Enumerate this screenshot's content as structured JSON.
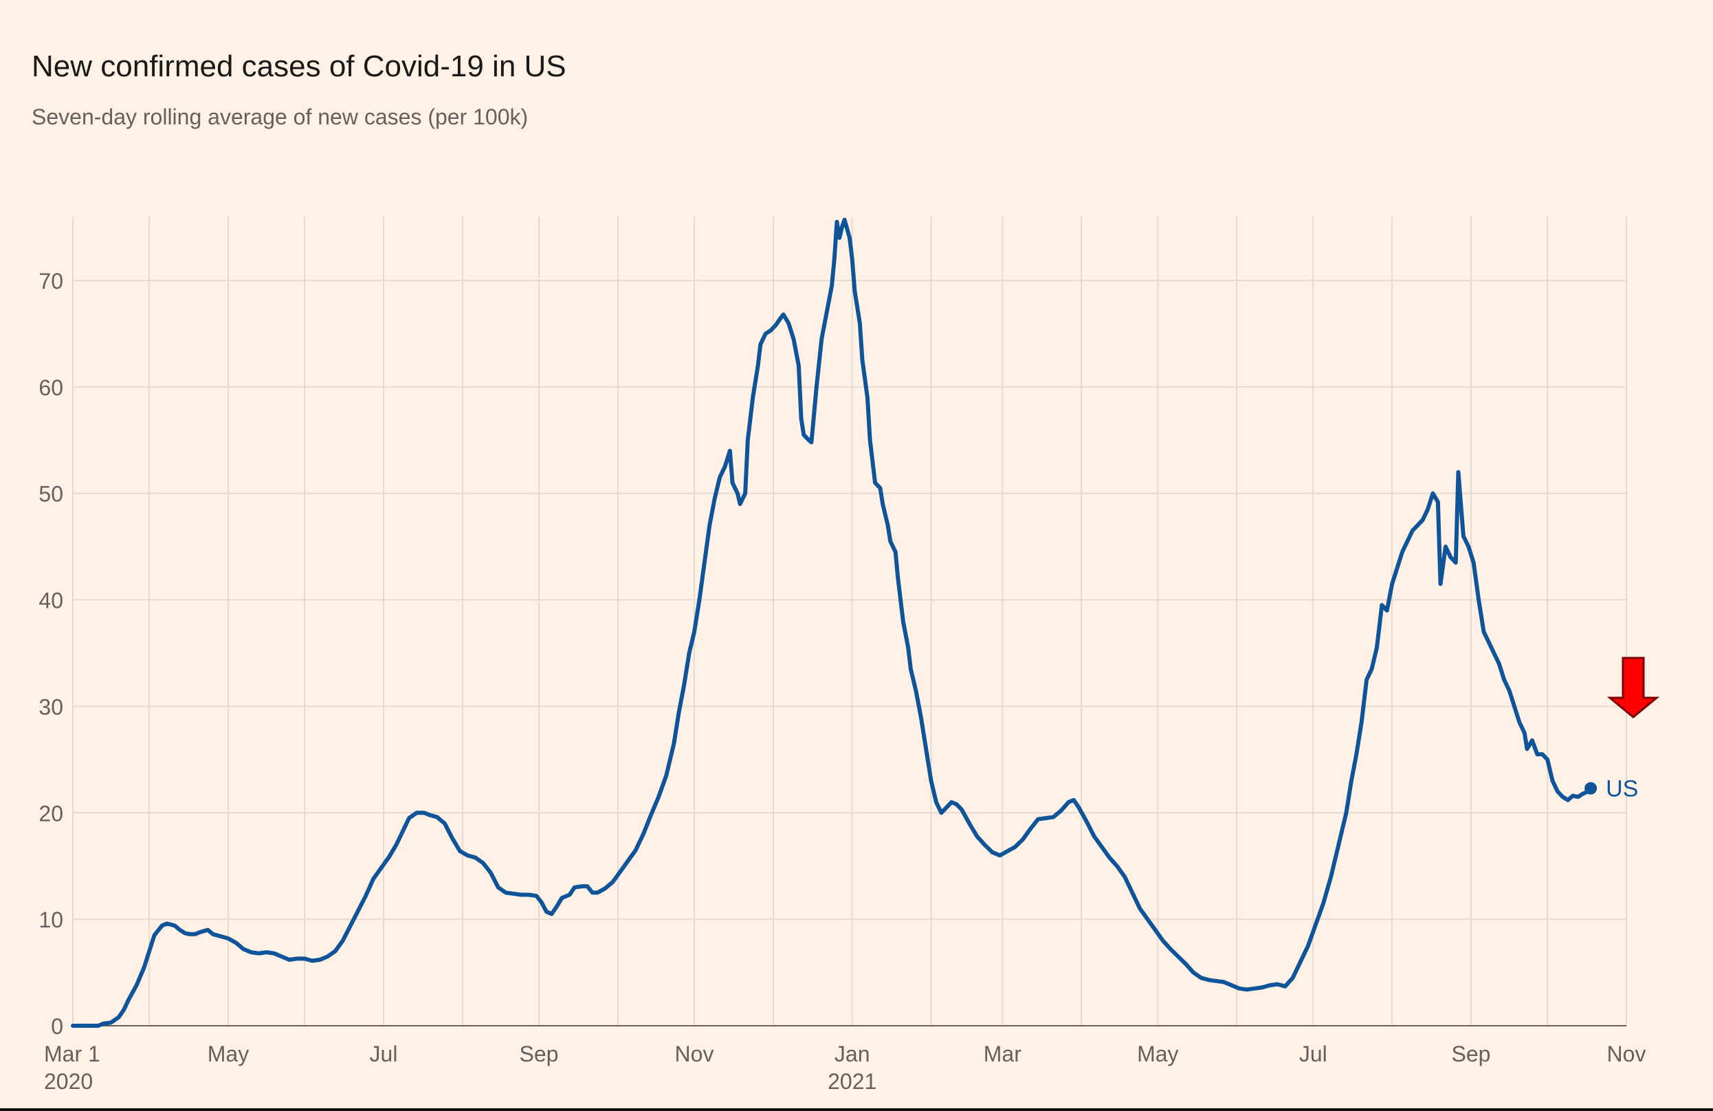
{
  "title": "New confirmed cases of Covid-19 in US",
  "subtitle": "Seven-day rolling average of new cases (per 100k)",
  "colors": {
    "background": "#fff1e5",
    "grid": "#e6d9ce",
    "axis": "#66605c",
    "series": "#0f5499",
    "arrow_fill": "#ff0000",
    "arrow_stroke": "#7a0000"
  },
  "annotation": {
    "type": "down-arrow",
    "icon": "down-arrow-icon",
    "target": "US"
  },
  "chart_data": {
    "type": "line",
    "title": "New confirmed cases of Covid-19 in US",
    "subtitle": "Seven-day rolling average of new cases (per 100k)",
    "xlabel": "",
    "ylabel": "",
    "xlim": [
      0,
      610
    ],
    "ylim": [
      0,
      76
    ],
    "grid": true,
    "legend": "end-label",
    "yticks": [
      0,
      10,
      20,
      30,
      40,
      50,
      60,
      70
    ],
    "xticks": [
      {
        "value": 0,
        "label": "Mar 1",
        "sublabel": "2020",
        "major": true
      },
      {
        "value": 30,
        "label": "",
        "sublabel": "",
        "major": false
      },
      {
        "value": 61,
        "label": "May",
        "sublabel": "",
        "major": true
      },
      {
        "value": 91,
        "label": "",
        "sublabel": "",
        "major": false
      },
      {
        "value": 122,
        "label": "Jul",
        "sublabel": "",
        "major": true
      },
      {
        "value": 153,
        "label": "",
        "sublabel": "",
        "major": false
      },
      {
        "value": 183,
        "label": "Sep",
        "sublabel": "",
        "major": true
      },
      {
        "value": 214,
        "label": "",
        "sublabel": "",
        "major": false
      },
      {
        "value": 244,
        "label": "Nov",
        "sublabel": "",
        "major": true
      },
      {
        "value": 275,
        "label": "",
        "sublabel": "",
        "major": false
      },
      {
        "value": 306,
        "label": "Jan",
        "sublabel": "2021",
        "major": true
      },
      {
        "value": 337,
        "label": "",
        "sublabel": "",
        "major": false
      },
      {
        "value": 365,
        "label": "Mar",
        "sublabel": "",
        "major": true
      },
      {
        "value": 396,
        "label": "",
        "sublabel": "",
        "major": false
      },
      {
        "value": 426,
        "label": "May",
        "sublabel": "",
        "major": true
      },
      {
        "value": 457,
        "label": "",
        "sublabel": "",
        "major": false
      },
      {
        "value": 487,
        "label": "Jul",
        "sublabel": "",
        "major": true
      },
      {
        "value": 518,
        "label": "",
        "sublabel": "",
        "major": false
      },
      {
        "value": 549,
        "label": "Sep",
        "sublabel": "",
        "major": true
      },
      {
        "value": 579,
        "label": "",
        "sublabel": "",
        "major": false
      },
      {
        "value": 610,
        "label": "Nov",
        "sublabel": "",
        "major": true
      }
    ],
    "series": [
      {
        "name": "US",
        "color": "#0f5499",
        "end_value": 22.3,
        "points": [
          [
            0,
            0
          ],
          [
            5,
            0
          ],
          [
            10,
            0
          ],
          [
            12,
            0.2
          ],
          [
            15,
            0.3
          ],
          [
            18,
            0.8
          ],
          [
            20,
            1.5
          ],
          [
            22,
            2.5
          ],
          [
            25,
            3.8
          ],
          [
            28,
            5.5
          ],
          [
            30,
            7
          ],
          [
            32,
            8.5
          ],
          [
            35,
            9.4
          ],
          [
            37,
            9.6
          ],
          [
            40,
            9.4
          ],
          [
            42,
            9.0
          ],
          [
            44,
            8.7
          ],
          [
            46,
            8.6
          ],
          [
            48,
            8.6
          ],
          [
            50,
            8.8
          ],
          [
            53,
            9.0
          ],
          [
            55,
            8.6
          ],
          [
            58,
            8.4
          ],
          [
            61,
            8.2
          ],
          [
            64,
            7.8
          ],
          [
            67,
            7.2
          ],
          [
            70,
            6.9
          ],
          [
            73,
            6.8
          ],
          [
            76,
            6.9
          ],
          [
            79,
            6.8
          ],
          [
            82,
            6.5
          ],
          [
            85,
            6.2
          ],
          [
            88,
            6.3
          ],
          [
            91,
            6.3
          ],
          [
            94,
            6.1
          ],
          [
            97,
            6.2
          ],
          [
            100,
            6.5
          ],
          [
            103,
            7.0
          ],
          [
            106,
            8.0
          ],
          [
            109,
            9.4
          ],
          [
            112,
            10.8
          ],
          [
            115,
            12.2
          ],
          [
            118,
            13.8
          ],
          [
            121,
            14.8
          ],
          [
            124,
            15.8
          ],
          [
            127,
            17.0
          ],
          [
            130,
            18.5
          ],
          [
            132,
            19.5
          ],
          [
            135,
            20.0
          ],
          [
            138,
            20.0
          ],
          [
            140,
            19.8
          ],
          [
            143,
            19.6
          ],
          [
            146,
            19.0
          ],
          [
            149,
            17.6
          ],
          [
            152,
            16.4
          ],
          [
            155,
            16.0
          ],
          [
            158,
            15.8
          ],
          [
            161,
            15.3
          ],
          [
            164,
            14.4
          ],
          [
            167,
            13.0
          ],
          [
            170,
            12.5
          ],
          [
            173,
            12.4
          ],
          [
            176,
            12.3
          ],
          [
            179,
            12.3
          ],
          [
            182,
            12.2
          ],
          [
            184,
            11.6
          ],
          [
            186,
            10.7
          ],
          [
            188,
            10.5
          ],
          [
            190,
            11.2
          ],
          [
            192,
            12.0
          ],
          [
            195,
            12.3
          ],
          [
            197,
            13.0
          ],
          [
            200,
            13.1
          ],
          [
            202,
            13.1
          ],
          [
            204,
            12.5
          ],
          [
            206,
            12.5
          ],
          [
            209,
            12.9
          ],
          [
            212,
            13.5
          ],
          [
            215,
            14.5
          ],
          [
            218,
            15.5
          ],
          [
            221,
            16.5
          ],
          [
            224,
            18.0
          ],
          [
            227,
            19.8
          ],
          [
            230,
            21.5
          ],
          [
            233,
            23.5
          ],
          [
            236,
            26.5
          ],
          [
            238,
            29.5
          ],
          [
            240,
            32.0
          ],
          [
            242,
            35.0
          ],
          [
            244,
            37.0
          ],
          [
            246,
            40.0
          ],
          [
            248,
            43.5
          ],
          [
            250,
            47.0
          ],
          [
            252,
            49.5
          ],
          [
            254,
            51.5
          ],
          [
            256,
            52.5
          ],
          [
            258,
            54.0
          ],
          [
            259,
            51.0
          ],
          [
            261,
            50.0
          ],
          [
            262,
            49.0
          ],
          [
            264,
            50.0
          ],
          [
            265,
            55.0
          ],
          [
            267,
            59.0
          ],
          [
            269,
            62.0
          ],
          [
            270,
            64.0
          ],
          [
            272,
            65.0
          ],
          [
            274,
            65.3
          ],
          [
            276,
            65.8
          ],
          [
            278,
            66.5
          ],
          [
            279,
            66.8
          ],
          [
            281,
            66.0
          ],
          [
            283,
            64.5
          ],
          [
            285,
            62.0
          ],
          [
            286,
            57.0
          ],
          [
            287,
            55.5
          ],
          [
            289,
            55.0
          ],
          [
            290,
            54.8
          ],
          [
            292,
            60.0
          ],
          [
            294,
            64.5
          ],
          [
            296,
            67.0
          ],
          [
            298,
            69.5
          ],
          [
            299,
            72.0
          ],
          [
            300,
            75.5
          ],
          [
            301,
            74.0
          ],
          [
            302,
            75.0
          ],
          [
            303,
            75.7
          ],
          [
            305,
            74.0
          ],
          [
            306,
            72.0
          ],
          [
            307,
            69.0
          ],
          [
            309,
            66.0
          ],
          [
            310,
            62.5
          ],
          [
            312,
            59.0
          ],
          [
            313,
            55.0
          ],
          [
            315,
            51.0
          ],
          [
            317,
            50.5
          ],
          [
            318,
            49.0
          ],
          [
            320,
            47.0
          ],
          [
            321,
            45.5
          ],
          [
            323,
            44.5
          ],
          [
            324,
            42.0
          ],
          [
            326,
            38.0
          ],
          [
            328,
            35.5
          ],
          [
            329,
            33.5
          ],
          [
            331,
            31.5
          ],
          [
            333,
            29.0
          ],
          [
            335,
            26.0
          ],
          [
            337,
            23.0
          ],
          [
            339,
            21.0
          ],
          [
            341,
            20.0
          ],
          [
            343,
            20.5
          ],
          [
            345,
            21.0
          ],
          [
            347,
            20.8
          ],
          [
            349,
            20.3
          ],
          [
            352,
            19.0
          ],
          [
            355,
            17.8
          ],
          [
            358,
            17.0
          ],
          [
            361,
            16.3
          ],
          [
            364,
            16.0
          ],
          [
            367,
            16.4
          ],
          [
            370,
            16.8
          ],
          [
            373,
            17.5
          ],
          [
            376,
            18.5
          ],
          [
            379,
            19.4
          ],
          [
            382,
            19.5
          ],
          [
            385,
            19.6
          ],
          [
            388,
            20.2
          ],
          [
            391,
            21.0
          ],
          [
            393,
            21.2
          ],
          [
            395,
            20.5
          ],
          [
            398,
            19.2
          ],
          [
            401,
            17.8
          ],
          [
            404,
            16.8
          ],
          [
            407,
            15.8
          ],
          [
            410,
            15.0
          ],
          [
            413,
            14.0
          ],
          [
            416,
            12.5
          ],
          [
            419,
            11.0
          ],
          [
            422,
            10.0
          ],
          [
            425,
            9.0
          ],
          [
            428,
            8.0
          ],
          [
            431,
            7.2
          ],
          [
            434,
            6.5
          ],
          [
            437,
            5.8
          ],
          [
            440,
            5.0
          ],
          [
            443,
            4.5
          ],
          [
            446,
            4.3
          ],
          [
            449,
            4.2
          ],
          [
            452,
            4.1
          ],
          [
            455,
            3.8
          ],
          [
            458,
            3.5
          ],
          [
            461,
            3.4
          ],
          [
            464,
            3.5
          ],
          [
            467,
            3.6
          ],
          [
            470,
            3.8
          ],
          [
            473,
            3.9
          ],
          [
            476,
            3.7
          ],
          [
            479,
            4.5
          ],
          [
            482,
            6.0
          ],
          [
            485,
            7.5
          ],
          [
            488,
            9.5
          ],
          [
            491,
            11.5
          ],
          [
            494,
            14.0
          ],
          [
            497,
            17.0
          ],
          [
            500,
            20.0
          ],
          [
            502,
            23.0
          ],
          [
            504,
            25.5
          ],
          [
            506,
            28.5
          ],
          [
            508,
            32.5
          ],
          [
            510,
            33.5
          ],
          [
            512,
            35.5
          ],
          [
            514,
            39.5
          ],
          [
            516,
            39.0
          ],
          [
            518,
            41.5
          ],
          [
            520,
            43.0
          ],
          [
            522,
            44.5
          ],
          [
            524,
            45.5
          ],
          [
            526,
            46.5
          ],
          [
            528,
            47.0
          ],
          [
            530,
            47.5
          ],
          [
            532,
            48.5
          ],
          [
            534,
            50.0
          ],
          [
            536,
            49.2
          ],
          [
            537,
            41.5
          ],
          [
            539,
            45.0
          ],
          [
            541,
            44.0
          ],
          [
            543,
            43.5
          ],
          [
            544,
            52.0
          ],
          [
            546,
            46.0
          ],
          [
            548,
            45.0
          ],
          [
            550,
            43.5
          ],
          [
            552,
            40.0
          ],
          [
            554,
            37.0
          ],
          [
            556,
            36.0
          ],
          [
            558,
            35.0
          ],
          [
            560,
            34.0
          ],
          [
            562,
            32.5
          ],
          [
            564,
            31.5
          ],
          [
            566,
            30.0
          ],
          [
            568,
            28.5
          ],
          [
            570,
            27.5
          ],
          [
            571,
            26.0
          ],
          [
            573,
            26.8
          ],
          [
            575,
            25.5
          ],
          [
            577,
            25.5
          ],
          [
            579,
            25.0
          ],
          [
            581,
            23.0
          ],
          [
            583,
            22.0
          ],
          [
            585,
            21.5
          ],
          [
            587,
            21.2
          ],
          [
            589,
            21.6
          ],
          [
            591,
            21.5
          ],
          [
            593,
            21.8
          ],
          [
            595,
            22.0
          ],
          [
            596,
            22.3
          ]
        ]
      }
    ]
  }
}
